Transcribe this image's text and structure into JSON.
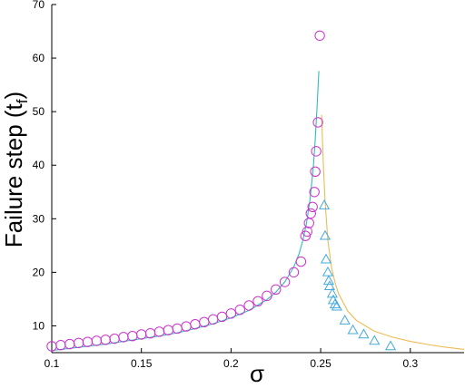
{
  "chart_data": {
    "type": "scatter",
    "xlabel": "σ",
    "ylabel_main": "Failure step (t",
    "ylabel_sub": "f",
    "ylabel_close": ")",
    "xlim": [
      0.1,
      0.33
    ],
    "ylim": [
      5,
      70
    ],
    "xticks": [
      {
        "value": 0.1,
        "label": "0.1"
      },
      {
        "value": 0.15,
        "label": "0.15"
      },
      {
        "value": 0.2,
        "label": "0.2"
      },
      {
        "value": 0.25,
        "label": "0.25"
      },
      {
        "value": 0.3,
        "label": "0.3"
      }
    ],
    "yticks": [
      {
        "value": 10,
        "label": "10"
      },
      {
        "value": 20,
        "label": "20"
      },
      {
        "value": 30,
        "label": "30"
      },
      {
        "value": 40,
        "label": "40"
      },
      {
        "value": 50,
        "label": "50"
      },
      {
        "value": 60,
        "label": "60"
      },
      {
        "value": 70,
        "label": "70"
      }
    ],
    "grid": false,
    "series": [
      {
        "kind": "scatter",
        "marker": "circle",
        "color": "#cc33cc",
        "points": [
          [
            0.1,
            6.2
          ],
          [
            0.105,
            6.4
          ],
          [
            0.11,
            6.6
          ],
          [
            0.115,
            6.8
          ],
          [
            0.12,
            7.0
          ],
          [
            0.125,
            7.2
          ],
          [
            0.13,
            7.4
          ],
          [
            0.135,
            7.6
          ],
          [
            0.14,
            7.9
          ],
          [
            0.145,
            8.1
          ],
          [
            0.15,
            8.4
          ],
          [
            0.155,
            8.6
          ],
          [
            0.16,
            8.9
          ],
          [
            0.165,
            9.2
          ],
          [
            0.17,
            9.5
          ],
          [
            0.175,
            9.9
          ],
          [
            0.18,
            10.3
          ],
          [
            0.185,
            10.7
          ],
          [
            0.19,
            11.2
          ],
          [
            0.195,
            11.7
          ],
          [
            0.2,
            12.3
          ],
          [
            0.205,
            13.0
          ],
          [
            0.21,
            13.8
          ],
          [
            0.215,
            14.6
          ],
          [
            0.22,
            15.6
          ],
          [
            0.225,
            16.8
          ],
          [
            0.23,
            18.2
          ],
          [
            0.235,
            20.0
          ],
          [
            0.239,
            22.0
          ],
          [
            0.2415,
            26.8
          ],
          [
            0.2425,
            27.6
          ],
          [
            0.2435,
            29.2
          ],
          [
            0.2445,
            31.0
          ],
          [
            0.2455,
            32.2
          ],
          [
            0.2465,
            35.0
          ],
          [
            0.247,
            38.8
          ],
          [
            0.2475,
            42.6
          ],
          [
            0.2485,
            48.0
          ],
          [
            0.2495,
            64.2
          ]
        ]
      },
      {
        "kind": "scatter",
        "marker": "triangle",
        "color": "#44aadd",
        "points": [
          [
            0.252,
            32.5
          ],
          [
            0.2525,
            26.8
          ],
          [
            0.253,
            22.4
          ],
          [
            0.254,
            20.0
          ],
          [
            0.2545,
            18.4
          ],
          [
            0.255,
            17.4
          ],
          [
            0.2565,
            16.0
          ],
          [
            0.257,
            14.8
          ],
          [
            0.258,
            14.0
          ],
          [
            0.259,
            13.6
          ],
          [
            0.2635,
            11.0
          ],
          [
            0.268,
            9.2
          ],
          [
            0.274,
            8.4
          ],
          [
            0.28,
            7.2
          ],
          [
            0.289,
            6.2
          ]
        ]
      },
      {
        "kind": "line",
        "color": "#33bbbb",
        "x": [
          0.1,
          0.11,
          0.12,
          0.13,
          0.14,
          0.15,
          0.16,
          0.17,
          0.18,
          0.19,
          0.2,
          0.21,
          0.22,
          0.225,
          0.23,
          0.235,
          0.238,
          0.24,
          0.242,
          0.244,
          0.246,
          0.247,
          0.248,
          0.249
        ],
        "y": [
          5.4,
          5.8,
          6.2,
          6.6,
          7.1,
          7.6,
          8.1,
          8.7,
          9.5,
          10.4,
          11.5,
          12.9,
          14.9,
          16.3,
          18.2,
          21.0,
          23.5,
          25.9,
          29.0,
          33.4,
          40.0,
          45.0,
          51.0,
          57.6
        ]
      },
      {
        "kind": "line",
        "color": "#eebb55",
        "x": [
          0.2505,
          0.2515,
          0.2525,
          0.254,
          0.256,
          0.258,
          0.26,
          0.265,
          0.27,
          0.28,
          0.29,
          0.3,
          0.31,
          0.32,
          0.33
        ],
        "y": [
          49.4,
          40.0,
          33.0,
          26.0,
          21.0,
          18.1,
          16.0,
          12.8,
          11.0,
          9.0,
          7.9,
          7.1,
          6.5,
          6.0,
          5.6
        ]
      }
    ]
  }
}
